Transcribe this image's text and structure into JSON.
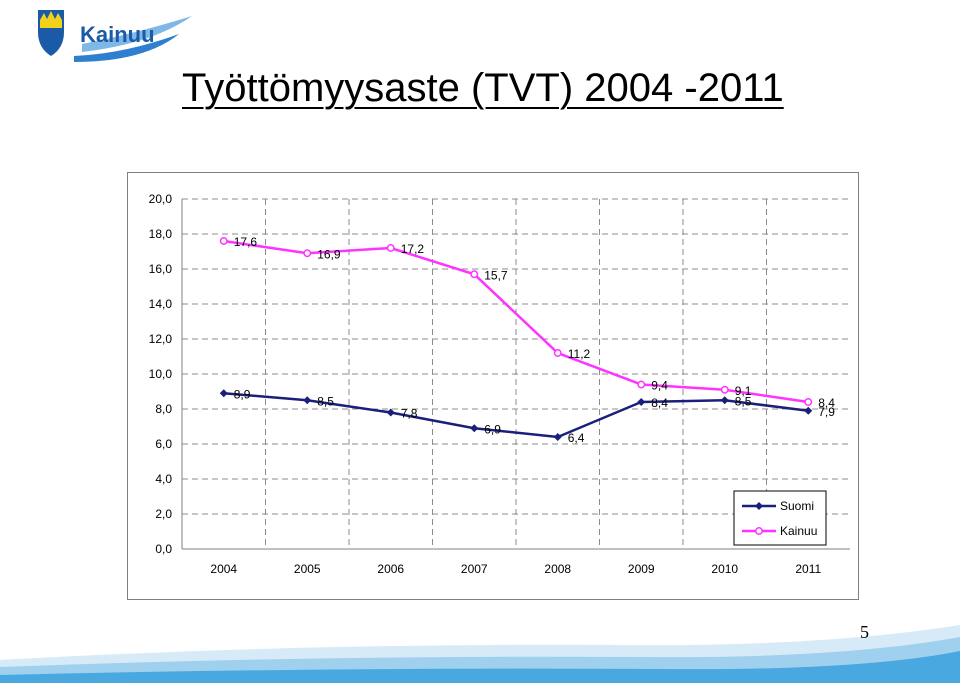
{
  "logo": {
    "text": "Kainuu"
  },
  "title": "Työttömyysaste (TVT) 2004 -2011",
  "page_number": "5",
  "colors": {
    "suomi": "#1a1f7a",
    "kainuu": "#ff33ff",
    "grid": "#8c8c8c",
    "logo_blue": "#1b5aa6",
    "logo_yellow": "#f2d11b"
  },
  "chart_data": {
    "type": "line",
    "title": "",
    "xlabel": "",
    "ylabel": "",
    "categories": [
      "2004",
      "2005",
      "2006",
      "2007",
      "2008",
      "2009",
      "2010",
      "2011"
    ],
    "ylim": [
      0,
      20
    ],
    "y_ticks": [
      "0,0",
      "2,0",
      "4,0",
      "6,0",
      "8,0",
      "10,0",
      "12,0",
      "14,0",
      "16,0",
      "18,0",
      "20,0"
    ],
    "grid": true,
    "legend_position": "bottom-right",
    "series": [
      {
        "name": "Suomi",
        "values": [
          8.9,
          8.5,
          7.8,
          6.9,
          6.4,
          8.4,
          8.5,
          7.9
        ],
        "labels": [
          "8,9",
          "8,5",
          "7,8",
          "6,9",
          "6,4",
          "8,4",
          "8,5",
          "7,9"
        ]
      },
      {
        "name": "Kainuu",
        "values": [
          17.6,
          16.9,
          17.2,
          15.7,
          11.2,
          9.4,
          9.1,
          8.4
        ],
        "labels": [
          "17,6",
          "16,9",
          "17,2",
          "15,7",
          "11,2",
          "9,4",
          "9,1",
          "8,4"
        ]
      }
    ]
  }
}
